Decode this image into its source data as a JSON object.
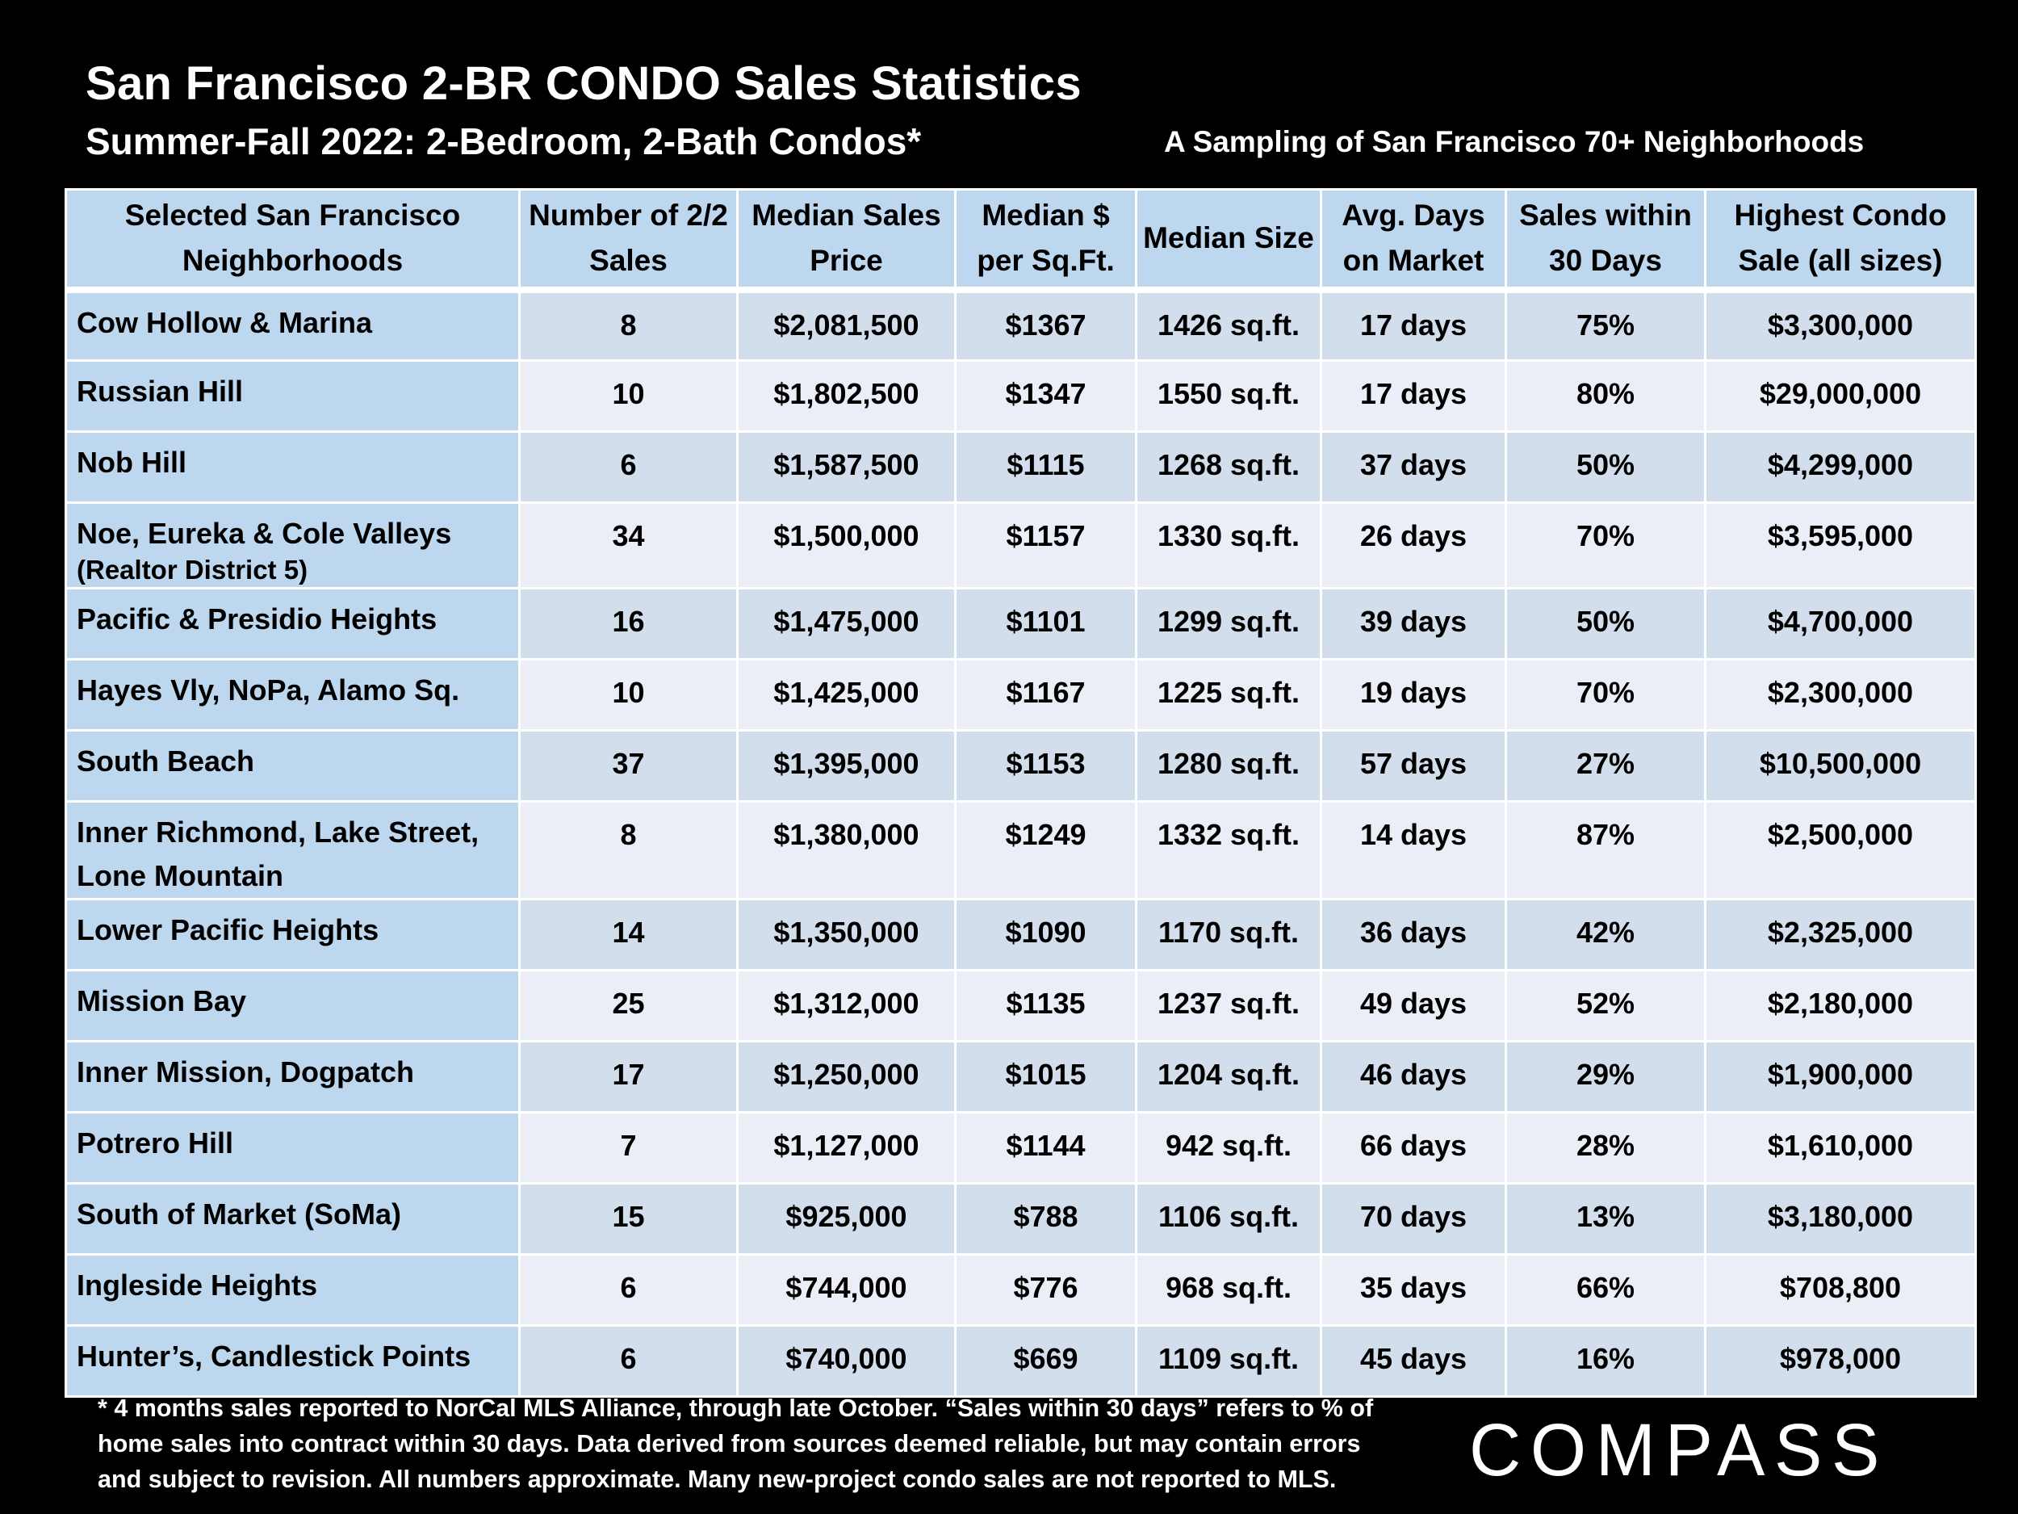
{
  "header": {
    "title": "San Francisco 2-BR CONDO Sales Statistics",
    "subtitle": "Summer-Fall 2022: 2-Bedroom, 2-Bath Condos*",
    "sampling": "A Sampling of San Francisco 70+ Neighborhoods"
  },
  "table": {
    "columns": [
      "Selected San Francisco Neighborhoods",
      "Number of 2/2 Sales",
      "Median Sales Price",
      "Median $ per Sq.Ft.",
      "Median Size",
      "Avg. Days on Market",
      "Sales within 30 Days",
      "Highest Condo Sale (all sizes)"
    ],
    "rows": [
      {
        "neighborhood": "Cow Hollow & Marina",
        "note": "",
        "sales": "8",
        "price": "$2,081,500",
        "ppsf": "$1367",
        "size": "1426 sq.ft.",
        "dom": "17 days",
        "within30": "75%",
        "highest": "$3,300,000"
      },
      {
        "neighborhood": "Russian Hill",
        "note": "",
        "sales": "10",
        "price": "$1,802,500",
        "ppsf": "$1347",
        "size": "1550 sq.ft.",
        "dom": "17 days",
        "within30": "80%",
        "highest": "$29,000,000"
      },
      {
        "neighborhood": "Nob Hill",
        "note": "",
        "sales": "6",
        "price": "$1,587,500",
        "ppsf": "$1115",
        "size": "1268 sq.ft.",
        "dom": "37 days",
        "within30": "50%",
        "highest": "$4,299,000"
      },
      {
        "neighborhood": "Noe, Eureka & Cole Valleys",
        "note": "(Realtor District 5)",
        "sales": "34",
        "price": "$1,500,000",
        "ppsf": "$1157",
        "size": "1330 sq.ft.",
        "dom": "26 days",
        "within30": "70%",
        "highest": "$3,595,000"
      },
      {
        "neighborhood": "Pacific & Presidio Heights",
        "note": "",
        "sales": "16",
        "price": "$1,475,000",
        "ppsf": "$1101",
        "size": "1299 sq.ft.",
        "dom": "39 days",
        "within30": "50%",
        "highest": "$4,700,000"
      },
      {
        "neighborhood": "Hayes Vly, NoPa, Alamo Sq.",
        "note": "",
        "sales": "10",
        "price": "$1,425,000",
        "ppsf": "$1167",
        "size": "1225 sq.ft.",
        "dom": "19 days",
        "within30": "70%",
        "highest": "$2,300,000"
      },
      {
        "neighborhood": "South Beach",
        "note": "",
        "sales": "37",
        "price": "$1,395,000",
        "ppsf": "$1153",
        "size": "1280 sq.ft.",
        "dom": "57 days",
        "within30": "27%",
        "highest": "$10,500,000"
      },
      {
        "neighborhood": "Inner Richmond, Lake Street, Lone Mountain",
        "note": "",
        "sales": "8",
        "price": "$1,380,000",
        "ppsf": "$1249",
        "size": "1332 sq.ft.",
        "dom": "14 days",
        "within30": "87%",
        "highest": "$2,500,000"
      },
      {
        "neighborhood": "Lower Pacific Heights",
        "note": "",
        "sales": "14",
        "price": "$1,350,000",
        "ppsf": "$1090",
        "size": "1170 sq.ft.",
        "dom": "36 days",
        "within30": "42%",
        "highest": "$2,325,000"
      },
      {
        "neighborhood": "Mission Bay",
        "note": "",
        "sales": "25",
        "price": "$1,312,000",
        "ppsf": "$1135",
        "size": "1237 sq.ft.",
        "dom": "49 days",
        "within30": "52%",
        "highest": "$2,180,000"
      },
      {
        "neighborhood": "Inner Mission, Dogpatch",
        "note": "",
        "sales": "17",
        "price": "$1,250,000",
        "ppsf": "$1015",
        "size": "1204 sq.ft.",
        "dom": "46 days",
        "within30": "29%",
        "highest": "$1,900,000"
      },
      {
        "neighborhood": "Potrero Hill",
        "note": "",
        "sales": "7",
        "price": "$1,127,000",
        "ppsf": "$1144",
        "size": "942 sq.ft.",
        "dom": "66 days",
        "within30": "28%",
        "highest": "$1,610,000"
      },
      {
        "neighborhood": "South of Market (SoMa)",
        "note": "",
        "sales": "15",
        "price": "$925,000",
        "ppsf": "$788",
        "size": "1106 sq.ft.",
        "dom": "70 days",
        "within30": "13%",
        "highest": "$3,180,000"
      },
      {
        "neighborhood": "Ingleside Heights",
        "note": "",
        "sales": "6",
        "price": "$744,000",
        "ppsf": "$776",
        "size": "968 sq.ft.",
        "dom": "35 days",
        "within30": "66%",
        "highest": "$708,800"
      },
      {
        "neighborhood": "Hunter’s, Candlestick Points",
        "note": "",
        "sales": "6",
        "price": "$740,000",
        "ppsf": "$669",
        "size": "1109 sq.ft.",
        "dom": "45 days",
        "within30": "16%",
        "highest": "$978,000"
      }
    ]
  },
  "footnote": "* 4 months sales reported to NorCal MLS Alliance, through late October. “Sales within 30 days” refers to % of home sales into contract within 30 days. Data derived from sources deemed reliable, but may contain errors and subject to revision. All numbers approximate. Many new-project condo sales are not reported to MLS.",
  "logo": {
    "text": "COMPASS"
  }
}
